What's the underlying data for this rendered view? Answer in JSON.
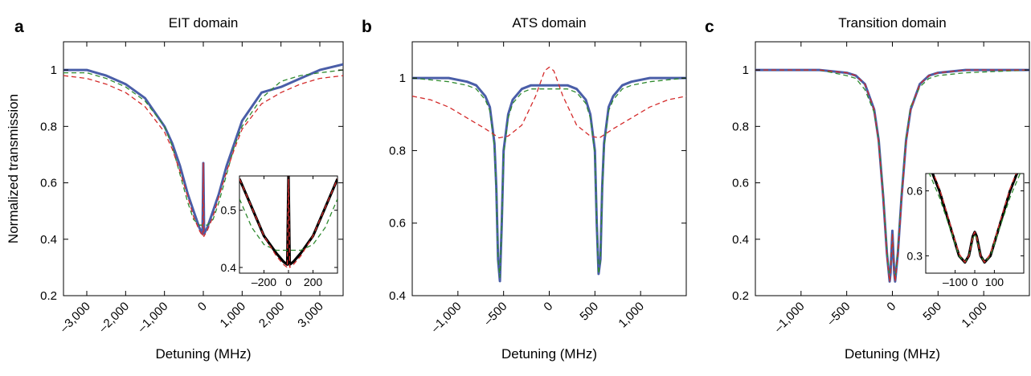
{
  "colors": {
    "measured": "#4a5ea8",
    "fit_green": "#2f8a2f",
    "fit_red": "#d42b2b",
    "inset_data": "#000000"
  },
  "chart_data": [
    {
      "type": "line",
      "panel_label": "a",
      "title": "EIT domain",
      "xlabel": "Detuning (MHz)",
      "ylabel": "Normalized transmission",
      "xlim": [
        -3600,
        3600
      ],
      "ylim": [
        0.2,
        1.1
      ],
      "xticks": [
        -3000,
        -2000,
        -1000,
        0,
        1000,
        2000,
        3000
      ],
      "xtick_labels": [
        "–3,000",
        "–2,000",
        "–1,000",
        "0",
        "1,000",
        "2,000",
        "3,000"
      ],
      "yticks": [
        0.2,
        0.4,
        0.6,
        0.8,
        1.0
      ],
      "ytick_labels": [
        "0.2",
        "0.4",
        "0.6",
        "0.8",
        "1"
      ],
      "series": [
        {
          "role": "measured",
          "color": "#4a5ea8",
          "x": [
            -3600,
            -3000,
            -2500,
            -2000,
            -1500,
            -1000,
            -800,
            -600,
            -400,
            -250,
            -100,
            -20,
            0,
            20,
            100,
            250,
            400,
            600,
            800,
            1000,
            1500,
            2000,
            2500,
            3000,
            3600
          ],
          "y": [
            1.0,
            1.0,
            0.98,
            0.95,
            0.9,
            0.8,
            0.74,
            0.66,
            0.56,
            0.5,
            0.44,
            0.42,
            0.67,
            0.42,
            0.44,
            0.5,
            0.56,
            0.66,
            0.74,
            0.82,
            0.92,
            0.94,
            0.97,
            1.0,
            1.02
          ]
        },
        {
          "role": "fit_green",
          "color": "#2f8a2f",
          "x": [
            -3600,
            -3000,
            -2500,
            -2000,
            -1500,
            -1000,
            -800,
            -600,
            -400,
            -250,
            -100,
            0,
            100,
            250,
            400,
            600,
            800,
            1000,
            1500,
            2000,
            2500,
            3000,
            3600
          ],
          "y": [
            0.99,
            0.99,
            0.97,
            0.94,
            0.89,
            0.8,
            0.73,
            0.63,
            0.53,
            0.47,
            0.45,
            0.45,
            0.45,
            0.47,
            0.53,
            0.63,
            0.73,
            0.8,
            0.9,
            0.96,
            0.98,
            0.99,
            1.0
          ]
        },
        {
          "role": "fit_red",
          "color": "#d42b2b",
          "x": [
            -3600,
            -3000,
            -2500,
            -2000,
            -1500,
            -1000,
            -800,
            -600,
            -400,
            -250,
            -100,
            -15,
            0,
            15,
            100,
            250,
            400,
            600,
            800,
            1000,
            1500,
            2000,
            2500,
            3000,
            3600
          ],
          "y": [
            0.98,
            0.97,
            0.95,
            0.92,
            0.87,
            0.78,
            0.72,
            0.64,
            0.55,
            0.48,
            0.43,
            0.41,
            0.67,
            0.41,
            0.43,
            0.48,
            0.55,
            0.64,
            0.72,
            0.79,
            0.88,
            0.92,
            0.95,
            0.97,
            0.98
          ]
        }
      ],
      "inset": {
        "xlim": [
          -400,
          400
        ],
        "ylim": [
          0.39,
          0.56
        ],
        "xticks": [
          -200,
          0,
          200
        ],
        "xtick_labels": [
          "–200",
          "0",
          "200"
        ],
        "yticks": [
          0.4,
          0.5
        ],
        "ytick_labels": [
          "0.4",
          "0.5"
        ],
        "series": [
          {
            "role": "inset_data",
            "color": "#000000",
            "x": [
              -400,
              -300,
              -200,
              -100,
              -40,
              -10,
              0,
              10,
              40,
              100,
              200,
              300,
              400
            ],
            "y": [
              0.555,
              0.505,
              0.455,
              0.425,
              0.41,
              0.405,
              0.56,
              0.405,
              0.41,
              0.425,
              0.455,
              0.505,
              0.555
            ]
          },
          {
            "role": "fit_green",
            "color": "#2f8a2f",
            "x": [
              -400,
              -300,
              -200,
              -100,
              0,
              100,
              200,
              300,
              400
            ],
            "y": [
              0.52,
              0.47,
              0.44,
              0.43,
              0.43,
              0.43,
              0.44,
              0.47,
              0.52
            ]
          },
          {
            "role": "fit_red",
            "color": "#d42b2b",
            "x": [
              -400,
              -300,
              -200,
              -100,
              -40,
              -10,
              0,
              10,
              40,
              100,
              200,
              300,
              400
            ],
            "y": [
              0.555,
              0.505,
              0.455,
              0.42,
              0.405,
              0.4,
              0.56,
              0.4,
              0.405,
              0.42,
              0.455,
              0.505,
              0.555
            ]
          }
        ]
      }
    },
    {
      "type": "line",
      "panel_label": "b",
      "title": "ATS domain",
      "xlabel": "Detuning (MHz)",
      "ylabel": "",
      "xlim": [
        -1500,
        1500
      ],
      "ylim": [
        0.4,
        1.1
      ],
      "xticks": [
        -1000,
        -500,
        0,
        500,
        1000
      ],
      "xtick_labels": [
        "–1,000",
        "–500",
        "0",
        "500",
        "1,000"
      ],
      "yticks": [
        0.4,
        0.6,
        0.8,
        1.0
      ],
      "ytick_labels": [
        "0.4",
        "0.6",
        "0.8",
        "1"
      ],
      "series": [
        {
          "role": "measured",
          "color": "#4a5ea8",
          "x": [
            -1500,
            -1100,
            -900,
            -800,
            -700,
            -650,
            -600,
            -580,
            -560,
            -540,
            -520,
            -500,
            -450,
            -400,
            -300,
            -200,
            -100,
            0,
            100,
            200,
            300,
            400,
            450,
            500,
            520,
            540,
            560,
            580,
            600,
            650,
            700,
            800,
            900,
            1100,
            1500
          ],
          "y": [
            1.0,
            1.0,
            0.99,
            0.98,
            0.95,
            0.92,
            0.82,
            0.7,
            0.5,
            0.44,
            0.6,
            0.8,
            0.9,
            0.94,
            0.97,
            0.98,
            0.98,
            0.98,
            0.98,
            0.98,
            0.97,
            0.94,
            0.9,
            0.8,
            0.6,
            0.46,
            0.5,
            0.7,
            0.82,
            0.92,
            0.95,
            0.98,
            0.99,
            1.0,
            1.0
          ]
        },
        {
          "role": "fit_green",
          "color": "#2f8a2f",
          "x": [
            -1500,
            -1100,
            -900,
            -800,
            -700,
            -650,
            -600,
            -580,
            -560,
            -540,
            -520,
            -500,
            -450,
            -400,
            -300,
            -200,
            -100,
            0,
            100,
            200,
            300,
            400,
            450,
            500,
            520,
            540,
            560,
            580,
            600,
            650,
            700,
            800,
            900,
            1100,
            1500
          ],
          "y": [
            1.0,
            0.99,
            0.98,
            0.97,
            0.94,
            0.91,
            0.81,
            0.69,
            0.5,
            0.45,
            0.6,
            0.79,
            0.89,
            0.93,
            0.96,
            0.97,
            0.97,
            0.97,
            0.97,
            0.97,
            0.96,
            0.93,
            0.89,
            0.79,
            0.6,
            0.46,
            0.5,
            0.69,
            0.81,
            0.91,
            0.94,
            0.97,
            0.98,
            0.99,
            1.0
          ]
        },
        {
          "role": "fit_red",
          "color": "#d42b2b",
          "x": [
            -1500,
            -1300,
            -1100,
            -900,
            -700,
            -550,
            -450,
            -300,
            -150,
            -50,
            0,
            50,
            150,
            300,
            450,
            550,
            700,
            900,
            1100,
            1300,
            1500
          ],
          "y": [
            0.95,
            0.94,
            0.92,
            0.89,
            0.86,
            0.835,
            0.84,
            0.87,
            0.95,
            1.02,
            1.03,
            1.02,
            0.95,
            0.87,
            0.84,
            0.835,
            0.86,
            0.89,
            0.92,
            0.94,
            0.95
          ]
        }
      ]
    },
    {
      "type": "line",
      "panel_label": "c",
      "title": "Transition domain",
      "xlabel": "Detuning (MHz)",
      "ylabel": "",
      "xlim": [
        -1500,
        1500
      ],
      "ylim": [
        0.2,
        1.1
      ],
      "xticks": [
        -1000,
        -500,
        0,
        500,
        1000
      ],
      "xtick_labels": [
        "–1,000",
        "–500",
        "0",
        "500",
        "1,000"
      ],
      "yticks": [
        0.2,
        0.4,
        0.6,
        0.8,
        1.0
      ],
      "ytick_labels": [
        "0.2",
        "0.4",
        "0.6",
        "0.8",
        "1"
      ],
      "series": [
        {
          "role": "measured",
          "color": "#4a5ea8",
          "x": [
            -1500,
            -800,
            -500,
            -400,
            -300,
            -200,
            -150,
            -100,
            -60,
            -30,
            -20,
            0,
            20,
            30,
            60,
            100,
            150,
            200,
            300,
            400,
            500,
            800,
            1500
          ],
          "y": [
            1.0,
            1.0,
            0.99,
            0.98,
            0.95,
            0.86,
            0.75,
            0.55,
            0.35,
            0.25,
            0.28,
            0.43,
            0.28,
            0.25,
            0.35,
            0.55,
            0.75,
            0.86,
            0.95,
            0.98,
            0.99,
            1.0,
            1.0
          ]
        },
        {
          "role": "fit_green",
          "color": "#2f8a2f",
          "x": [
            -1500,
            -800,
            -500,
            -400,
            -300,
            -200,
            -150,
            -100,
            -60,
            -30,
            -20,
            0,
            20,
            30,
            60,
            100,
            150,
            200,
            300,
            400,
            500,
            800,
            1500
          ],
          "y": [
            1.0,
            1.0,
            0.98,
            0.97,
            0.93,
            0.85,
            0.75,
            0.56,
            0.36,
            0.26,
            0.29,
            0.42,
            0.29,
            0.26,
            0.36,
            0.56,
            0.76,
            0.87,
            0.94,
            0.97,
            0.98,
            0.99,
            1.0
          ]
        },
        {
          "role": "fit_red",
          "color": "#d42b2b",
          "x": [
            -1500,
            -800,
            -500,
            -400,
            -300,
            -200,
            -150,
            -100,
            -60,
            -30,
            -20,
            0,
            20,
            30,
            60,
            100,
            150,
            200,
            300,
            400,
            500,
            800,
            1500
          ],
          "y": [
            1.0,
            1.0,
            0.99,
            0.98,
            0.95,
            0.86,
            0.74,
            0.54,
            0.34,
            0.25,
            0.28,
            0.42,
            0.28,
            0.25,
            0.34,
            0.54,
            0.74,
            0.86,
            0.95,
            0.98,
            0.99,
            1.0,
            1.0
          ]
        }
      ],
      "inset": {
        "xlim": [
          -250,
          250
        ],
        "ylim": [
          0.22,
          0.68
        ],
        "xticks": [
          -100,
          0,
          100
        ],
        "xtick_labels": [
          "–100",
          "0",
          "100"
        ],
        "yticks": [
          0.3,
          0.6
        ],
        "ytick_labels": [
          "0.3",
          "0.6"
        ],
        "series": [
          {
            "role": "inset_data",
            "color": "#000000",
            "x": [
              -250,
              -180,
              -120,
              -80,
              -50,
              -30,
              -10,
              0,
              10,
              30,
              50,
              80,
              120,
              180,
              250
            ],
            "y": [
              0.76,
              0.6,
              0.42,
              0.3,
              0.27,
              0.3,
              0.39,
              0.41,
              0.39,
              0.3,
              0.27,
              0.3,
              0.42,
              0.6,
              0.76
            ]
          },
          {
            "role": "fit_green",
            "color": "#2f8a2f",
            "x": [
              -250,
              -180,
              -120,
              -80,
              -50,
              -30,
              -10,
              0,
              10,
              30,
              50,
              80,
              120,
              180,
              250
            ],
            "y": [
              0.72,
              0.57,
              0.41,
              0.3,
              0.27,
              0.3,
              0.38,
              0.4,
              0.38,
              0.3,
              0.27,
              0.3,
              0.41,
              0.57,
              0.72
            ]
          },
          {
            "role": "fit_red",
            "color": "#d42b2b",
            "x": [
              -250,
              -180,
              -120,
              -80,
              -50,
              -30,
              -10,
              0,
              10,
              30,
              50,
              80,
              120,
              180,
              250
            ],
            "y": [
              0.77,
              0.61,
              0.43,
              0.31,
              0.27,
              0.3,
              0.39,
              0.41,
              0.39,
              0.3,
              0.27,
              0.31,
              0.43,
              0.61,
              0.77
            ]
          }
        ]
      }
    }
  ]
}
